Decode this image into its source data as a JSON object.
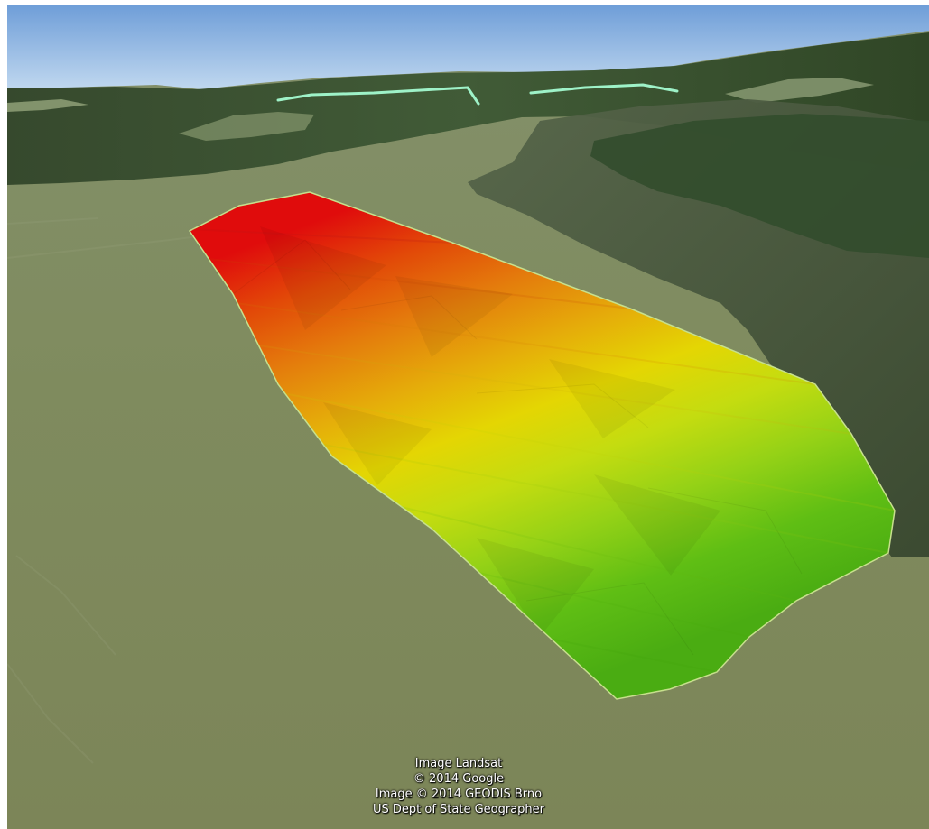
{
  "map": {
    "view": "3D terrain perspective",
    "base_layer": "satellite imagery",
    "overlay": {
      "type": "elevation color gradient polygon",
      "colors": [
        "#e00c0c",
        "#e24a08",
        "#e47d0c",
        "#e5ab0a",
        "#e4d603",
        "#c4dc10",
        "#96d216",
        "#5fbe14",
        "#4aac12"
      ]
    },
    "boundary_line_color": "#9ef2c8"
  },
  "attribution": {
    "line1": "Image Landsat",
    "line2": "© 2014 Google",
    "line3": "Image © 2014 GEODIS Brno",
    "line4": "US Dept of State Geographer"
  }
}
